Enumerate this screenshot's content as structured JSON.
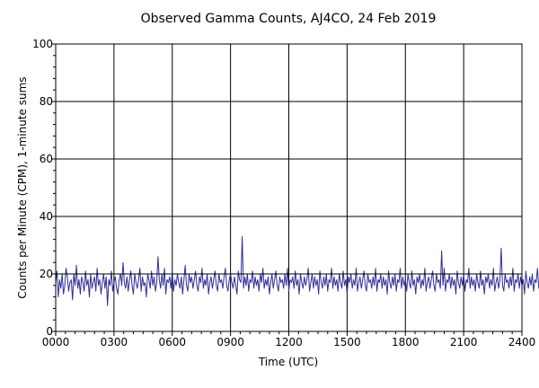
{
  "chart_data": {
    "type": "line",
    "title": "Observed Gamma Counts, AJ4CO, 24 Feb 2019",
    "xlabel": "Time (UTC)",
    "ylabel": "Counts per Minute (CPM), 1-minute sums",
    "xlim": [
      0,
      1440
    ],
    "ylim": [
      0,
      100
    ],
    "x_unit": "minutes since 0000 UTC",
    "x_ticks": [
      {
        "value": 0,
        "label": "0000"
      },
      {
        "value": 180,
        "label": "0300"
      },
      {
        "value": 360,
        "label": "0600"
      },
      {
        "value": 540,
        "label": "0900"
      },
      {
        "value": 720,
        "label": "1200"
      },
      {
        "value": 900,
        "label": "1500"
      },
      {
        "value": 1080,
        "label": "1800"
      },
      {
        "value": 1260,
        "label": "2100"
      },
      {
        "value": 1440,
        "label": "2400"
      }
    ],
    "y_ticks": [
      {
        "value": 0,
        "label": "0"
      },
      {
        "value": 20,
        "label": "20"
      },
      {
        "value": 40,
        "label": "40"
      },
      {
        "value": 60,
        "label": "60"
      },
      {
        "value": 80,
        "label": "80"
      },
      {
        "value": 100,
        "label": "100"
      }
    ],
    "reference_line": {
      "value": 20,
      "color": "#000000"
    },
    "grid": true,
    "series": [
      {
        "color": "#2e2e9a",
        "x_start": 0,
        "x_step": 4,
        "values": [
          17,
          21,
          12,
          18,
          15,
          20,
          13,
          16,
          22,
          19,
          14,
          17,
          18,
          11,
          20,
          16,
          23,
          15,
          18,
          13,
          19,
          17,
          14,
          21,
          16,
          18,
          12,
          20,
          15,
          17,
          19,
          14,
          22,
          16,
          18,
          13,
          17,
          20,
          15,
          19,
          9,
          18,
          16,
          21,
          14,
          17,
          19,
          15,
          13,
          18,
          20,
          16,
          24,
          17,
          15,
          19,
          14,
          18,
          21,
          16,
          13,
          20,
          17,
          15,
          18,
          22,
          14,
          19,
          16,
          17,
          12,
          20,
          18,
          15,
          21,
          16,
          19,
          14,
          17,
          26,
          18,
          15,
          20,
          16,
          22,
          13,
          18,
          17,
          19,
          15,
          21,
          14,
          18,
          16,
          20,
          17,
          15,
          19,
          13,
          18,
          23,
          16,
          14,
          20,
          17,
          19,
          15,
          18,
          21,
          16,
          14,
          19,
          17,
          22,
          15,
          18,
          16,
          20,
          13,
          17,
          19,
          15,
          18,
          21,
          16,
          14,
          20,
          17,
          18,
          15,
          19,
          22,
          16,
          14,
          18,
          20,
          17,
          15,
          19,
          16,
          13,
          21,
          18,
          17,
          33,
          15,
          19,
          16,
          20,
          14,
          18,
          17,
          21,
          15,
          19,
          16,
          18,
          14,
          20,
          17,
          22,
          15,
          18,
          16,
          19,
          13,
          17,
          20,
          15,
          18,
          21,
          16,
          14,
          19,
          17,
          18,
          15,
          20,
          16,
          22,
          14,
          18,
          17,
          19,
          15,
          21,
          16,
          18,
          13,
          20,
          17,
          15,
          19,
          16,
          18,
          22,
          14,
          17,
          20,
          15,
          19,
          16,
          18,
          13,
          21,
          17,
          15,
          19,
          16,
          20,
          14,
          18,
          17,
          22,
          15,
          19,
          16,
          18,
          14,
          20,
          17,
          15,
          21,
          16,
          18,
          13,
          19,
          17,
          20,
          15,
          18,
          16,
          22,
          14,
          17,
          19,
          15,
          18,
          21,
          16,
          14,
          20,
          17,
          18,
          15,
          19,
          16,
          22,
          14,
          18,
          17,
          20,
          15,
          19,
          16,
          18,
          13,
          21,
          17,
          15,
          19,
          16,
          20,
          14,
          18,
          17,
          22,
          15,
          19,
          16,
          18,
          14,
          20,
          17,
          15,
          21,
          16,
          18,
          13,
          19,
          17,
          20,
          15,
          18,
          16,
          22,
          14,
          17,
          19,
          15,
          18,
          21,
          16,
          14,
          20,
          17,
          18,
          15,
          28,
          16,
          22,
          14,
          18,
          17,
          20,
          15,
          19,
          16,
          18,
          13,
          21,
          17,
          15,
          19,
          16,
          20,
          14,
          18,
          17,
          22,
          15,
          19,
          16,
          18,
          14,
          20,
          17,
          15,
          21,
          16,
          18,
          13,
          19,
          17,
          20,
          15,
          18,
          16,
          22,
          14,
          17,
          19,
          15,
          18,
          29,
          16,
          14,
          20,
          17,
          18,
          15,
          19,
          16,
          22,
          14,
          18,
          17,
          20,
          15,
          19,
          16,
          18,
          13,
          21,
          17,
          15,
          19,
          16,
          20,
          14,
          18,
          17,
          22,
          15,
          19,
          16,
          18,
          14,
          20,
          17,
          15,
          21,
          16,
          18,
          13,
          19,
          17,
          20,
          15,
          18,
          16,
          22,
          14,
          17,
          19,
          15,
          18,
          21,
          16,
          14,
          20,
          17,
          18,
          15,
          19,
          16,
          22
        ]
      }
    ]
  }
}
